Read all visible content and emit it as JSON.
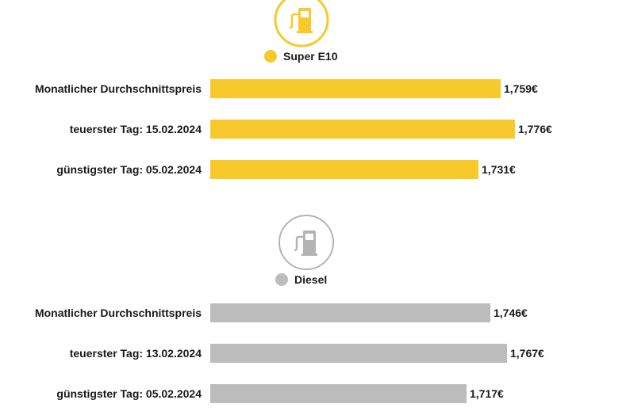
{
  "chart_data": [
    {
      "type": "bar",
      "orientation": "horizontal",
      "legend": "Super E10",
      "color": "#f7c92a",
      "icon": "fuel-pump-icon",
      "categories": [
        "Monatlicher Durchschnittspreis",
        "teuerster Tag: 15.02.2024",
        "günstigster Tag: 05.02.2024"
      ],
      "values": [
        1.759,
        1.776,
        1.731
      ],
      "value_labels": [
        "1,759€",
        "1,776€",
        "1,731€"
      ]
    },
    {
      "type": "bar",
      "orientation": "horizontal",
      "legend": "Diesel",
      "color": "#bdbcbd",
      "icon": "fuel-pump-icon",
      "categories": [
        "Monatlicher Durchschnittspreis",
        "teuerster Tag: 13.02.2024",
        "günstigster Tag: 05.02.2024"
      ],
      "values": [
        1.746,
        1.767,
        1.717
      ],
      "value_labels": [
        "1,746€",
        "1,767€",
        "1,717€"
      ]
    }
  ]
}
